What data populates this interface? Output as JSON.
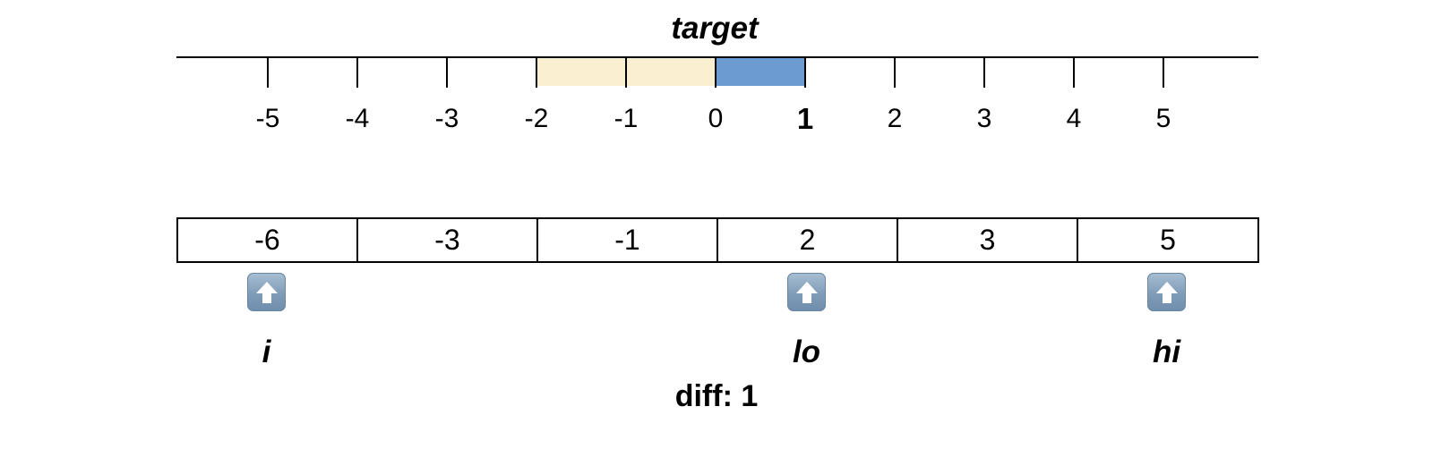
{
  "number_line": {
    "title": "target",
    "ticks": [
      "-5",
      "-4",
      "-3",
      "-2",
      "-1",
      "0",
      "1",
      "2",
      "3",
      "4",
      "5"
    ],
    "highlighted_tick": "1",
    "candidate_range": {
      "from": -2,
      "to": 0,
      "color": "#fbefd2"
    },
    "target_range": {
      "from": 0,
      "to": 1,
      "color": "#6b9bd1"
    }
  },
  "array": {
    "values": [
      "-6",
      "-3",
      "-1",
      "2",
      "3",
      "5"
    ]
  },
  "pointers": [
    {
      "label": "i",
      "index": 0,
      "icon": "up-arrow-icon"
    },
    {
      "label": "lo",
      "index": 3,
      "icon": "up-arrow-icon"
    },
    {
      "label": "hi",
      "index": 5,
      "icon": "up-arrow-icon"
    }
  ],
  "diff": {
    "label": "diff:",
    "value": "1"
  }
}
